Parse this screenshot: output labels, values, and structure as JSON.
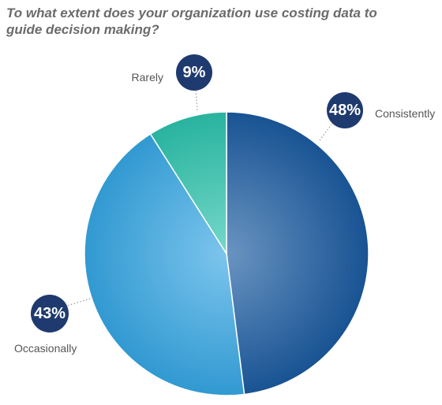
{
  "chart_data": {
    "type": "pie",
    "title": "To what extent does your organization use costing data to guide decision making?",
    "start_angle": "12 o'clock, clockwise",
    "slices": [
      {
        "label": "Consistently",
        "value": 48,
        "value_label": "48%",
        "color": "#1a5aa0"
      },
      {
        "label": "Occasionally",
        "value": 43,
        "value_label": "43%",
        "color": "#35a6e3"
      },
      {
        "label": "Rarely",
        "value": 9,
        "value_label": "9%",
        "color": "#2cc3ad"
      }
    ],
    "badge_color": "#1f3a6e",
    "leader_line_style": "dotted"
  }
}
